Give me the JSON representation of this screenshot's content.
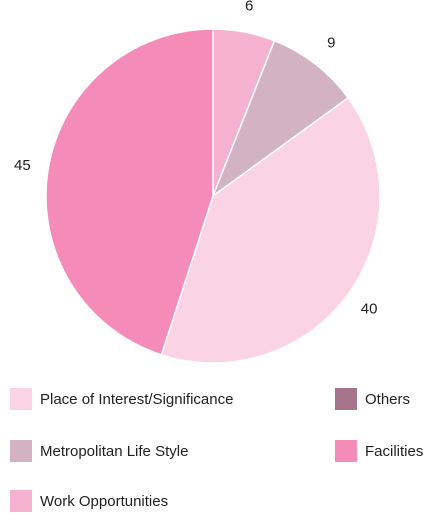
{
  "chart_data": {
    "type": "pie",
    "categories": [
      "Work Opportunities",
      "Metropolitan Life Style",
      "Place of Interest/Significance",
      "Facilities",
      "Others"
    ],
    "values": [
      6,
      9,
      40,
      45,
      0
    ],
    "colors": [
      "#f5b2d0",
      "#d3b3c3",
      "#fad4e4",
      "#f48bb9",
      "#a6748c"
    ]
  }
}
